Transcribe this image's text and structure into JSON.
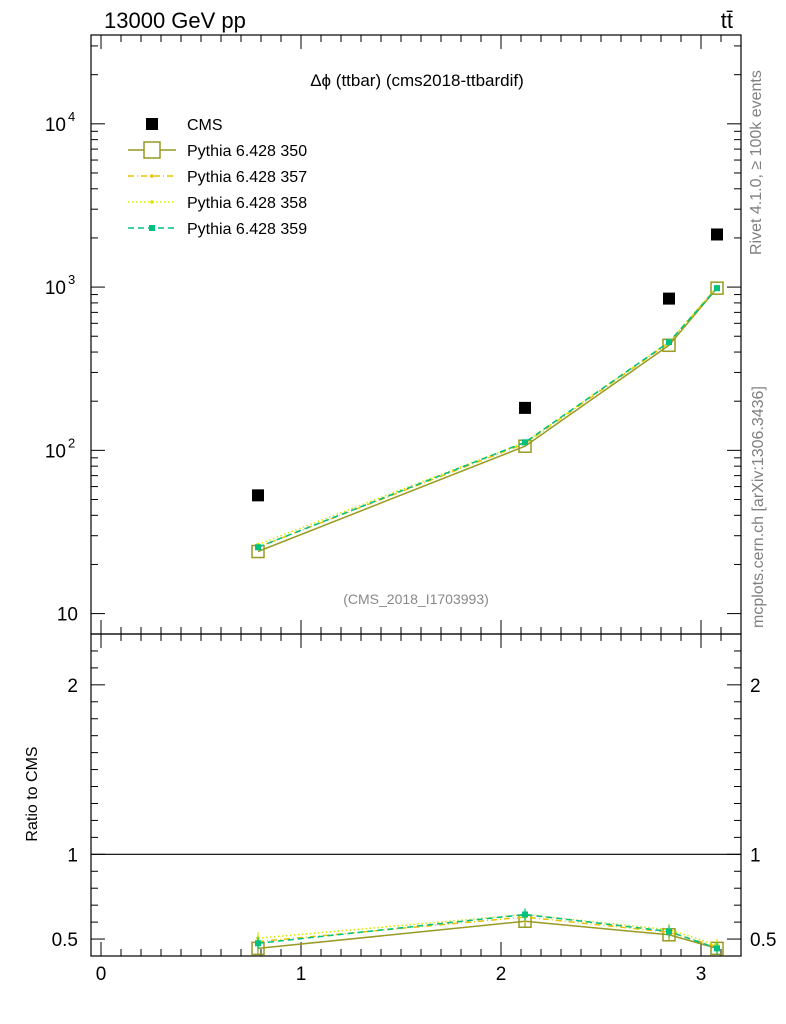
{
  "header": {
    "left": "13000 GeV pp",
    "right": "tt̄"
  },
  "side_labels": {
    "rivet": "Rivet 4.1.0, ≥ 100k events",
    "mcplots": "mcplots.cern.ch [arXiv:1306.3436]"
  },
  "chart_data": [
    {
      "type": "scatter",
      "title": "Δϕ (ttbar) (cms2018-ttbardif)",
      "watermark": "(CMS_2018_I1703993)",
      "yscale": "log",
      "xlim": [
        -0.05,
        3.2
      ],
      "ylim": [
        7.5,
        35000
      ],
      "ytick_labels": [
        "10",
        "10",
        "10",
        "10"
      ],
      "ytick_exponents": [
        "",
        "2",
        "3",
        "4"
      ],
      "ytick_values": [
        10,
        100,
        1000,
        10000
      ],
      "legend_position": "top-left",
      "series": [
        {
          "name": "CMS",
          "color": "#000000",
          "marker": "square-filled",
          "x": [
            0.785,
            2.12,
            2.84,
            3.08
          ],
          "y": [
            53,
            182,
            850,
            2100
          ]
        },
        {
          "name": "Pythia 6.428 350",
          "color": "#999a22",
          "marker": "square-open",
          "line": "solid",
          "x": [
            0.785,
            2.12,
            2.84,
            3.08
          ],
          "y": [
            24,
            106,
            440,
            985
          ]
        },
        {
          "name": "Pythia 6.428 357",
          "color": "#e8c200",
          "marker": "dot",
          "line": "dashdot",
          "x": [
            0.785,
            2.12,
            2.84,
            3.08
          ],
          "y": [
            25.5,
            110,
            455,
            1000
          ]
        },
        {
          "name": "Pythia 6.428 358",
          "color": "#d7e600",
          "marker": "dot",
          "line": "dotted",
          "x": [
            0.785,
            2.12,
            2.84,
            3.08
          ],
          "y": [
            26.5,
            112,
            460,
            1005
          ]
        },
        {
          "name": "Pythia 6.428 359",
          "color": "#00c080",
          "marker": "square-small",
          "line": "dashed",
          "x": [
            0.785,
            2.12,
            2.84,
            3.08
          ],
          "y": [
            25.5,
            112,
            460,
            985
          ]
        }
      ]
    },
    {
      "type": "line",
      "ylabel": "Ratio to CMS",
      "xlim": [
        -0.05,
        3.2
      ],
      "ylim": [
        0.4,
        2.3
      ],
      "xtick_labels": [
        "0",
        "1",
        "2",
        "3"
      ],
      "xtick_values": [
        0,
        1,
        2,
        3
      ],
      "ytick_labels": [
        "0.5",
        "1",
        "2"
      ],
      "ytick_values": [
        0.5,
        1,
        2
      ],
      "reference_line": 1,
      "series": [
        {
          "name": "Pythia 6.428 350",
          "color": "#999a22",
          "x": [
            0.785,
            2.12,
            2.84,
            3.08
          ],
          "y": [
            0.445,
            0.605,
            0.525,
            0.445
          ]
        },
        {
          "name": "Pythia 6.428 357",
          "color": "#e8c200",
          "x": [
            0.785,
            2.12,
            2.84,
            3.08
          ],
          "y": [
            0.485,
            0.63,
            0.54,
            0.455
          ]
        },
        {
          "name": "Pythia 6.428 358",
          "color": "#d7e600",
          "x": [
            0.785,
            2.12,
            2.84,
            3.08
          ],
          "y": [
            0.505,
            0.645,
            0.555,
            0.465
          ]
        },
        {
          "name": "Pythia 6.428 359",
          "color": "#00c080",
          "x": [
            0.785,
            2.12,
            2.84,
            3.08
          ],
          "y": [
            0.475,
            0.645,
            0.545,
            0.445
          ]
        }
      ]
    }
  ]
}
